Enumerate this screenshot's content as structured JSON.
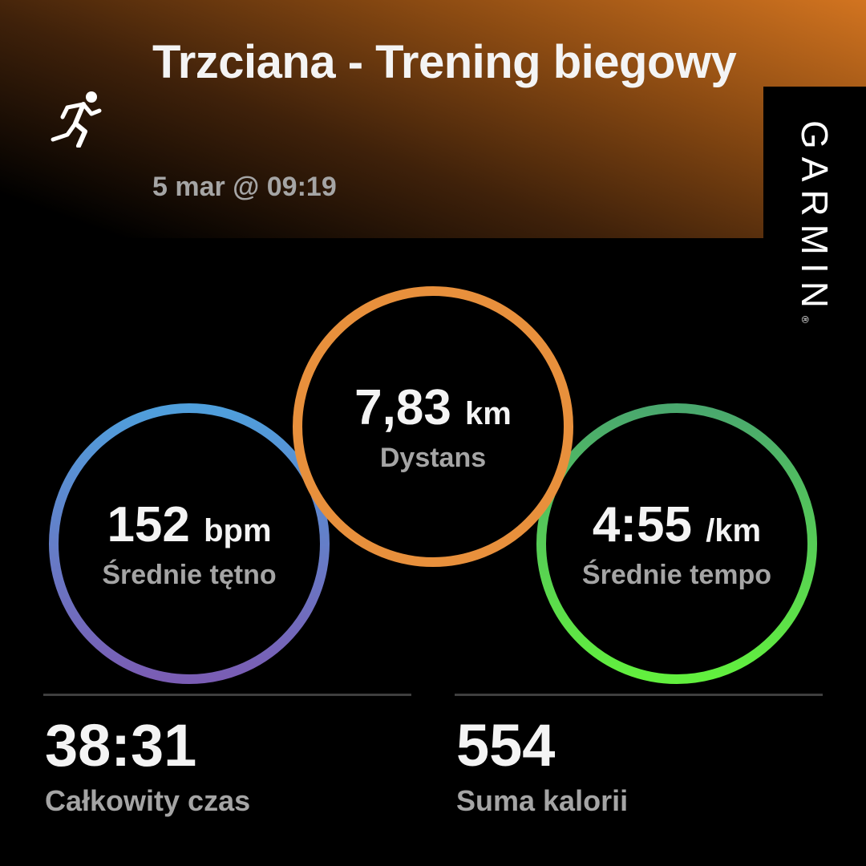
{
  "activity": {
    "icon": "running-person-icon",
    "title": "Trzciana - Trening biegowy",
    "date": "5 mar @ 09:19"
  },
  "brand": {
    "logo": "GARMIN",
    "registered": "®"
  },
  "metrics": [
    {
      "value": "152",
      "unit": "bpm",
      "label": "Średnie tętno",
      "color_top": "#4f9fdc",
      "color_bottom": "#7a5db4"
    },
    {
      "value": "7,83",
      "unit": "km",
      "label": "Dystans",
      "color_top": "#e8903c",
      "color_bottom": "#e8903c"
    },
    {
      "value": "4:55",
      "unit": "/km",
      "label": "Średnie tempo",
      "color_top": "#4aa86e",
      "color_bottom": "#62f03e"
    }
  ],
  "stats": [
    {
      "value": "38:31",
      "label": "Całkowity czas"
    },
    {
      "value": "554",
      "label": "Suma kalorii"
    }
  ]
}
